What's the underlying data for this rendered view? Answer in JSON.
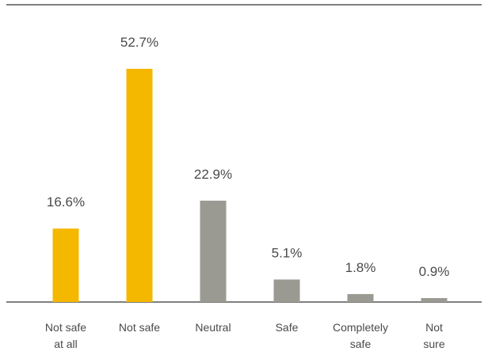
{
  "chart_data": {
    "type": "bar",
    "categories": [
      [
        "Not safe",
        "at all"
      ],
      [
        "Not safe"
      ],
      [
        "Neutral"
      ],
      [
        "Safe"
      ],
      [
        "Completely",
        "safe"
      ],
      [
        "Not",
        "sure"
      ]
    ],
    "values": [
      16.6,
      52.7,
      22.9,
      5.1,
      1.8,
      0.9
    ],
    "value_labels": [
      "16.6%",
      "52.7%",
      "22.9%",
      "5.1%",
      "1.8%",
      "0.9%"
    ],
    "ylim": [
      0,
      52.7
    ],
    "grid": false,
    "legend": "none",
    "colors": {
      "highlight": "#f5b800",
      "neutral": "#9b9a92",
      "axis": "#333333",
      "text": "#4a4a4a"
    },
    "bar_colors": [
      "highlight",
      "highlight",
      "neutral",
      "neutral",
      "neutral",
      "neutral"
    ]
  }
}
